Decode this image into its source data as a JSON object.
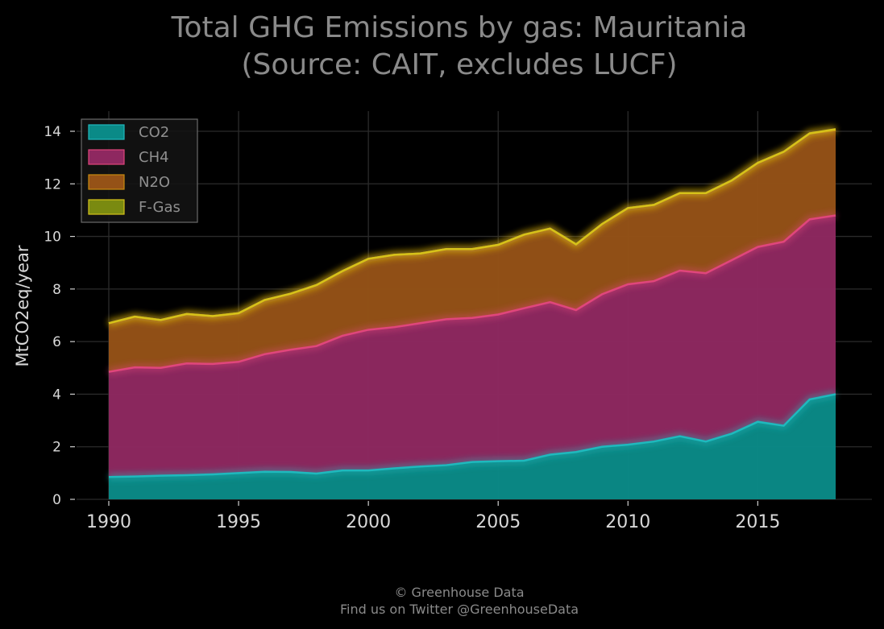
{
  "chart_data": {
    "type": "area",
    "title": "Total GHG Emissions by gas: Mauritania",
    "subtitle": "(Source: CAIT, excludes LUCF)",
    "ylabel": "MtCO2eq/year",
    "xlabel": "",
    "xlim": [
      1990,
      2018
    ],
    "ylim": [
      0,
      14
    ],
    "x_ticks": [
      1990,
      1995,
      2000,
      2005,
      2010,
      2015
    ],
    "y_ticks": [
      0,
      2,
      4,
      6,
      8,
      10,
      12,
      14
    ],
    "grid": true,
    "stacked": true,
    "legend_position": "top-left",
    "x": [
      1990,
      1991,
      1992,
      1993,
      1994,
      1995,
      1996,
      1997,
      1998,
      1999,
      2000,
      2001,
      2002,
      2003,
      2004,
      2005,
      2006,
      2007,
      2008,
      2009,
      2010,
      2011,
      2012,
      2013,
      2014,
      2015,
      2016,
      2017,
      2018
    ],
    "series": [
      {
        "name": "CO2",
        "fill": "#0a8a87",
        "edge": "#1fb9bd",
        "values": [
          0.85,
          0.87,
          0.9,
          0.92,
          0.95,
          1.0,
          1.05,
          1.04,
          0.98,
          1.1,
          1.1,
          1.18,
          1.25,
          1.3,
          1.42,
          1.45,
          1.47,
          1.7,
          1.8,
          2.0,
          2.08,
          2.2,
          2.4,
          2.2,
          2.5,
          2.95,
          2.8,
          3.8,
          4.0
        ]
      },
      {
        "name": "CH4",
        "fill": "#8e2860",
        "edge": "#e0467c",
        "values": [
          4.0,
          4.15,
          4.1,
          4.25,
          4.2,
          4.23,
          4.47,
          4.65,
          4.85,
          5.12,
          5.35,
          5.37,
          5.45,
          5.55,
          5.48,
          5.58,
          5.8,
          5.8,
          5.4,
          5.8,
          6.1,
          6.1,
          6.3,
          6.4,
          6.6,
          6.65,
          7.0,
          6.85,
          6.8
        ]
      },
      {
        "name": "N2O",
        "fill": "#955217",
        "edge": "#c98a10",
        "values": [
          1.85,
          1.93,
          1.82,
          1.88,
          1.82,
          1.85,
          2.06,
          2.13,
          2.32,
          2.46,
          2.7,
          2.75,
          2.65,
          2.67,
          2.62,
          2.65,
          2.8,
          2.8,
          2.5,
          2.67,
          2.9,
          2.9,
          2.95,
          3.05,
          3.03,
          3.2,
          3.42,
          3.27,
          3.24
        ]
      },
      {
        "name": "F-Gas",
        "fill": "#7a8a10",
        "edge": "#d6c21a",
        "values": [
          0,
          0,
          0,
          0,
          0,
          0,
          0,
          0,
          0,
          0,
          0,
          0,
          0,
          0,
          0,
          0,
          0,
          0,
          0,
          0,
          0,
          0,
          0,
          0,
          0,
          0,
          0,
          0,
          0.04
        ]
      }
    ]
  },
  "footer": {
    "line1": "© Greenhouse Data",
    "line2": "Find us on Twitter @GreenhouseData"
  }
}
